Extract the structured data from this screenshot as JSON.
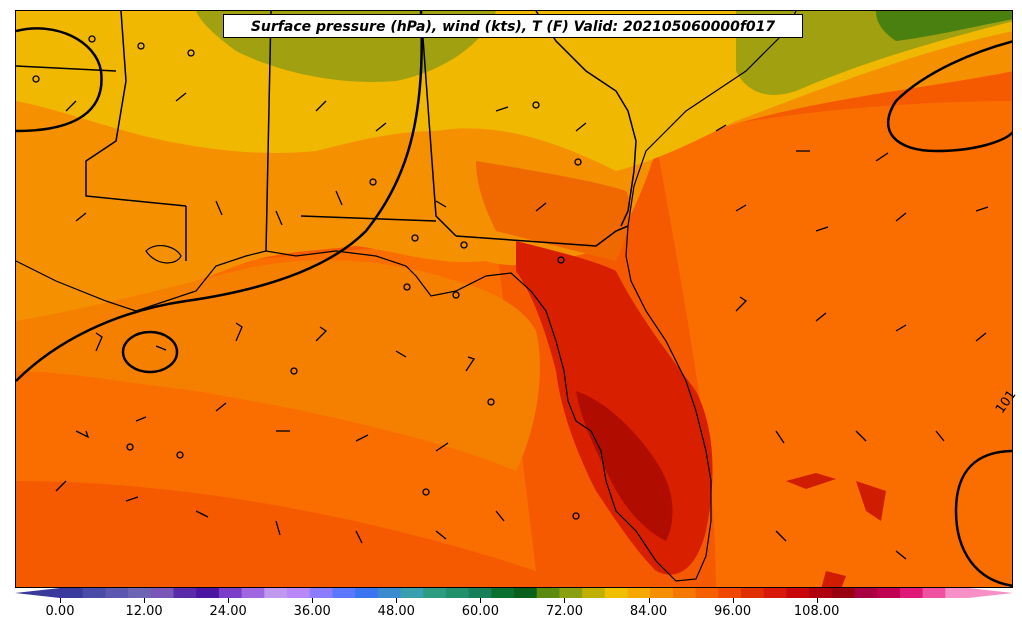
{
  "title": "Surface pressure (hPa), wind (kts), T (F) Valid: 202105060000f017",
  "colorbar": {
    "tick_labels": [
      "0.00",
      "12.00",
      "24.00",
      "36.00",
      "48.00",
      "60.00",
      "72.00",
      "84.00",
      "96.00",
      "108.00"
    ],
    "colors": [
      "#3a3a9c",
      "#4b4ba8",
      "#5c58b0",
      "#6e64b4",
      "#7a56b8",
      "#5a2ba8",
      "#4a15a0",
      "#7b3ec8",
      "#a068e0",
      "#c098f0",
      "#b888f8",
      "#8c7cff",
      "#5a78ff",
      "#3a74f0",
      "#3a8ad0",
      "#3aa0b0",
      "#2e9a80",
      "#22906a",
      "#188058",
      "#0a7030",
      "#0a6018",
      "#5a8a10",
      "#8aa010",
      "#c0b000",
      "#f0c000",
      "#f5a800",
      "#f59000",
      "#f57800",
      "#f56000",
      "#f04800",
      "#e03000",
      "#d81808",
      "#c80808",
      "#b00010",
      "#980010",
      "#a80040",
      "#c00050",
      "#e01878",
      "#f050a0",
      "#f890c8"
    ]
  },
  "isobar_label": "101",
  "colors": {
    "gulf": "#f55800",
    "ocean": "#fa6e00",
    "land_warm": "#f08c00",
    "land_cool": "#f0b400",
    "hot": "#d01c00",
    "hottest": "#b00c00",
    "green": "#a0a010",
    "dark_green": "#4a8010"
  }
}
